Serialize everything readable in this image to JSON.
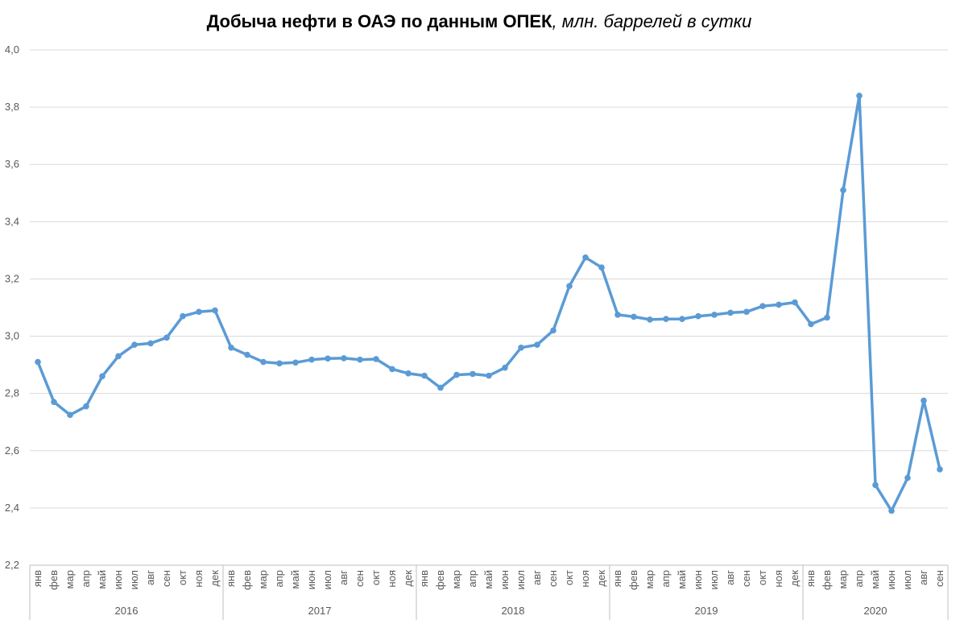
{
  "chart_data": {
    "type": "line",
    "title": "Добыча нефти в ОАЭ по данным ОПЕК",
    "subtitle": ", млн. баррелей в сутки",
    "xlabel": "",
    "ylabel": "",
    "ylim": [
      2.2,
      4.0
    ],
    "y_ticks": [
      "2,2",
      "2,4",
      "2,6",
      "2,8",
      "3,0",
      "3,2",
      "3,4",
      "3,6",
      "3,8",
      "4,0"
    ],
    "grid": "horizontal",
    "legend": "none",
    "color": "#5B9BD5",
    "years": [
      {
        "label": "2016",
        "months": [
          "янв",
          "фев",
          "мар",
          "апр",
          "май",
          "июн",
          "июл",
          "авг",
          "сен",
          "окт",
          "ноя",
          "дек"
        ]
      },
      {
        "label": "2017",
        "months": [
          "янв",
          "фев",
          "мар",
          "апр",
          "май",
          "июн",
          "июл",
          "авг",
          "сен",
          "окт",
          "ноя",
          "дек"
        ]
      },
      {
        "label": "2018",
        "months": [
          "янв",
          "фев",
          "мар",
          "апр",
          "май",
          "июн",
          "июл",
          "авг",
          "сен",
          "окт",
          "ноя",
          "дек"
        ]
      },
      {
        "label": "2019",
        "months": [
          "янв",
          "фев",
          "мар",
          "апр",
          "май",
          "июн",
          "июл",
          "авг",
          "сен",
          "окт",
          "ноя",
          "дек"
        ]
      },
      {
        "label": "2020",
        "months": [
          "янв",
          "фев",
          "мар",
          "апр",
          "май",
          "июн",
          "июл",
          "авг",
          "сен"
        ]
      }
    ],
    "values": [
      2.91,
      2.77,
      2.725,
      2.755,
      2.86,
      2.93,
      2.97,
      2.975,
      2.995,
      3.07,
      3.085,
      3.09,
      2.96,
      2.935,
      2.91,
      2.905,
      2.908,
      2.918,
      2.922,
      2.923,
      2.918,
      2.92,
      2.885,
      2.87,
      2.862,
      2.82,
      2.865,
      2.868,
      2.862,
      2.89,
      2.96,
      2.97,
      3.02,
      3.175,
      3.275,
      3.24,
      3.075,
      3.068,
      3.058,
      3.06,
      3.06,
      3.07,
      3.075,
      3.082,
      3.085,
      3.105,
      3.11,
      3.118,
      3.042,
      3.065,
      3.51,
      3.84,
      2.48,
      2.39,
      2.505,
      2.775,
      2.535
    ]
  }
}
